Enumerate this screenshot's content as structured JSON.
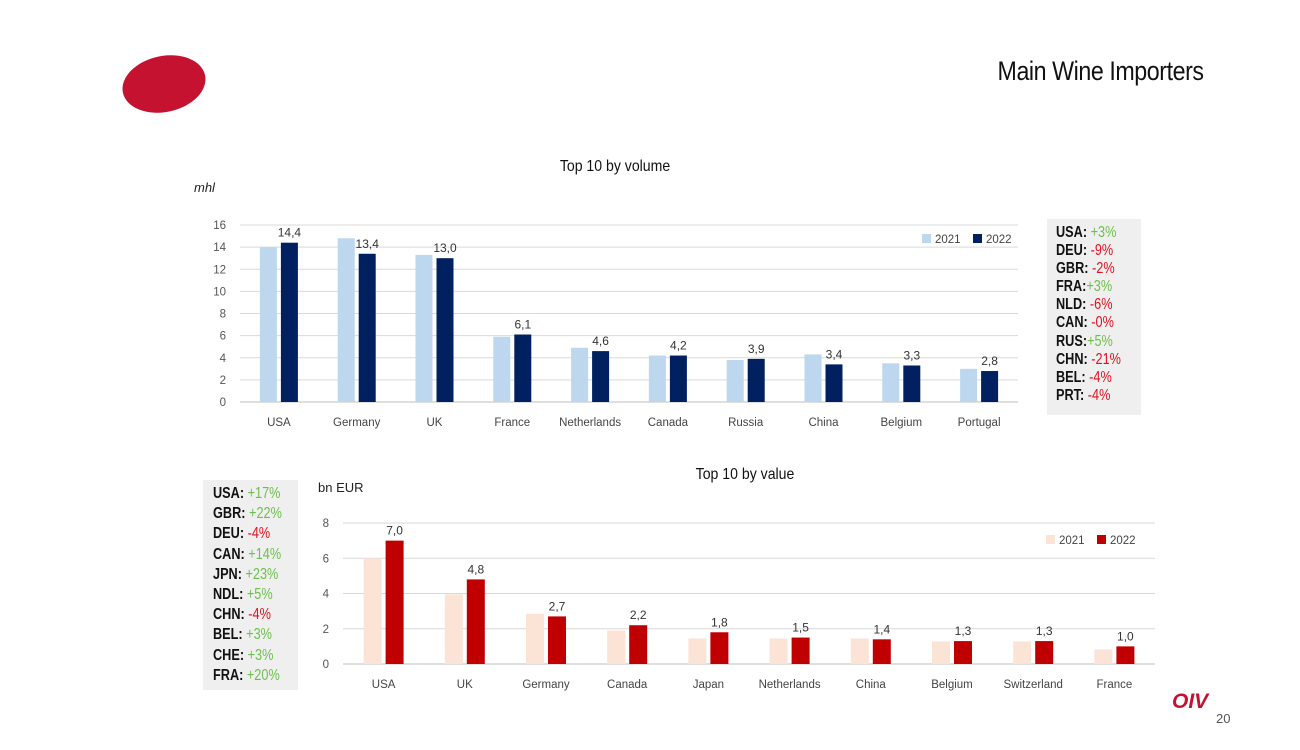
{
  "page": {
    "title": "Main Wine Importers",
    "page_number": "20",
    "footer_logo": "OIV"
  },
  "colors": {
    "brand_red": "#c41230",
    "volume_2021": "#bdd7ee",
    "volume_2022": "#002060",
    "value_2021": "#fbe3d6",
    "value_2022": "#c00000",
    "growth_positive": "#6cc04a",
    "growth_negative": "#e0111f"
  },
  "chart_data": [
    {
      "type": "bar",
      "title": "Top 10 by volume",
      "ylabel": "mhl",
      "categories": [
        "USA",
        "Germany",
        "UK",
        "France",
        "Netherlands",
        "Canada",
        "Russia",
        "China",
        "Belgium",
        "Portugal"
      ],
      "series": [
        {
          "name": "2021",
          "values": [
            14.0,
            14.8,
            13.3,
            5.9,
            4.9,
            4.2,
            3.8,
            4.3,
            3.5,
            3.0
          ]
        },
        {
          "name": "2022",
          "values": [
            14.4,
            13.4,
            13.0,
            6.1,
            4.6,
            4.2,
            3.9,
            3.4,
            3.3,
            2.8
          ]
        }
      ],
      "data_labels": [
        "14,4",
        "13,4",
        "13,0",
        "6,1",
        "4,6",
        "4,2",
        "3,9",
        "3,4",
        "3,3",
        "2,8"
      ],
      "ylim": [
        0,
        16
      ],
      "yticks": [
        0,
        2,
        4,
        6,
        8,
        10,
        12,
        14,
        16
      ],
      "grid": true,
      "legend": "top-right"
    },
    {
      "type": "bar",
      "title": "Top 10 by value",
      "ylabel": "bn EUR",
      "categories": [
        "USA",
        "UK",
        "Germany",
        "Canada",
        "Japan",
        "Netherlands",
        "China",
        "Belgium",
        "Switzerland",
        "France"
      ],
      "series": [
        {
          "name": "2021",
          "values": [
            6.0,
            3.95,
            2.85,
            1.9,
            1.45,
            1.45,
            1.45,
            1.28,
            1.28,
            0.83
          ]
        },
        {
          "name": "2022",
          "values": [
            7.0,
            4.8,
            2.7,
            2.2,
            1.8,
            1.5,
            1.4,
            1.3,
            1.3,
            1.0
          ]
        }
      ],
      "data_labels": [
        "7,0",
        "4,8",
        "2,7",
        "2,2",
        "1,8",
        "1,5",
        "1,4",
        "1,3",
        "1,3",
        "1,0"
      ],
      "ylim": [
        0,
        8
      ],
      "yticks": [
        0,
        2,
        4,
        6,
        8
      ],
      "grid": true,
      "legend": "top-right"
    }
  ],
  "volume_growth": [
    {
      "code": "USA: ",
      "change": "+3%",
      "sign": "pos"
    },
    {
      "code": "DEU: ",
      "change": "-9%",
      "sign": "neg"
    },
    {
      "code": "GBR: ",
      "change": "-2%",
      "sign": "neg"
    },
    {
      "code": "FRA:",
      "change": "+3%",
      "sign": "pos"
    },
    {
      "code": "NLD: ",
      "change": "-6%",
      "sign": "neg"
    },
    {
      "code": "CAN: ",
      "change": "-0%",
      "sign": "neg"
    },
    {
      "code": "RUS:",
      "change": "+5%",
      "sign": "pos"
    },
    {
      "code": "CHN: ",
      "change": "-21%",
      "sign": "neg"
    },
    {
      "code": "BEL: ",
      "change": "-4%",
      "sign": "neg"
    },
    {
      "code": "PRT: ",
      "change": "-4%",
      "sign": "neg"
    }
  ],
  "value_growth": [
    {
      "code": "USA: ",
      "change": "+17%",
      "sign": "pos"
    },
    {
      "code": "GBR: ",
      "change": "+22%",
      "sign": "pos"
    },
    {
      "code": "DEU: ",
      "change": "-4%",
      "sign": "neg"
    },
    {
      "code": "CAN: ",
      "change": "+14%",
      "sign": "pos"
    },
    {
      "code": "JPN: ",
      "change": "+23%",
      "sign": "pos"
    },
    {
      "code": "NDL: ",
      "change": "+5%",
      "sign": "pos"
    },
    {
      "code": "CHN:  ",
      "change": "-4%",
      "sign": "neg"
    },
    {
      "code": "BEL: ",
      "change": "+3%",
      "sign": "pos"
    },
    {
      "code": "CHE: ",
      "change": "+3%",
      "sign": "pos"
    },
    {
      "code": "FRA: ",
      "change": "+20%",
      "sign": "pos"
    }
  ]
}
